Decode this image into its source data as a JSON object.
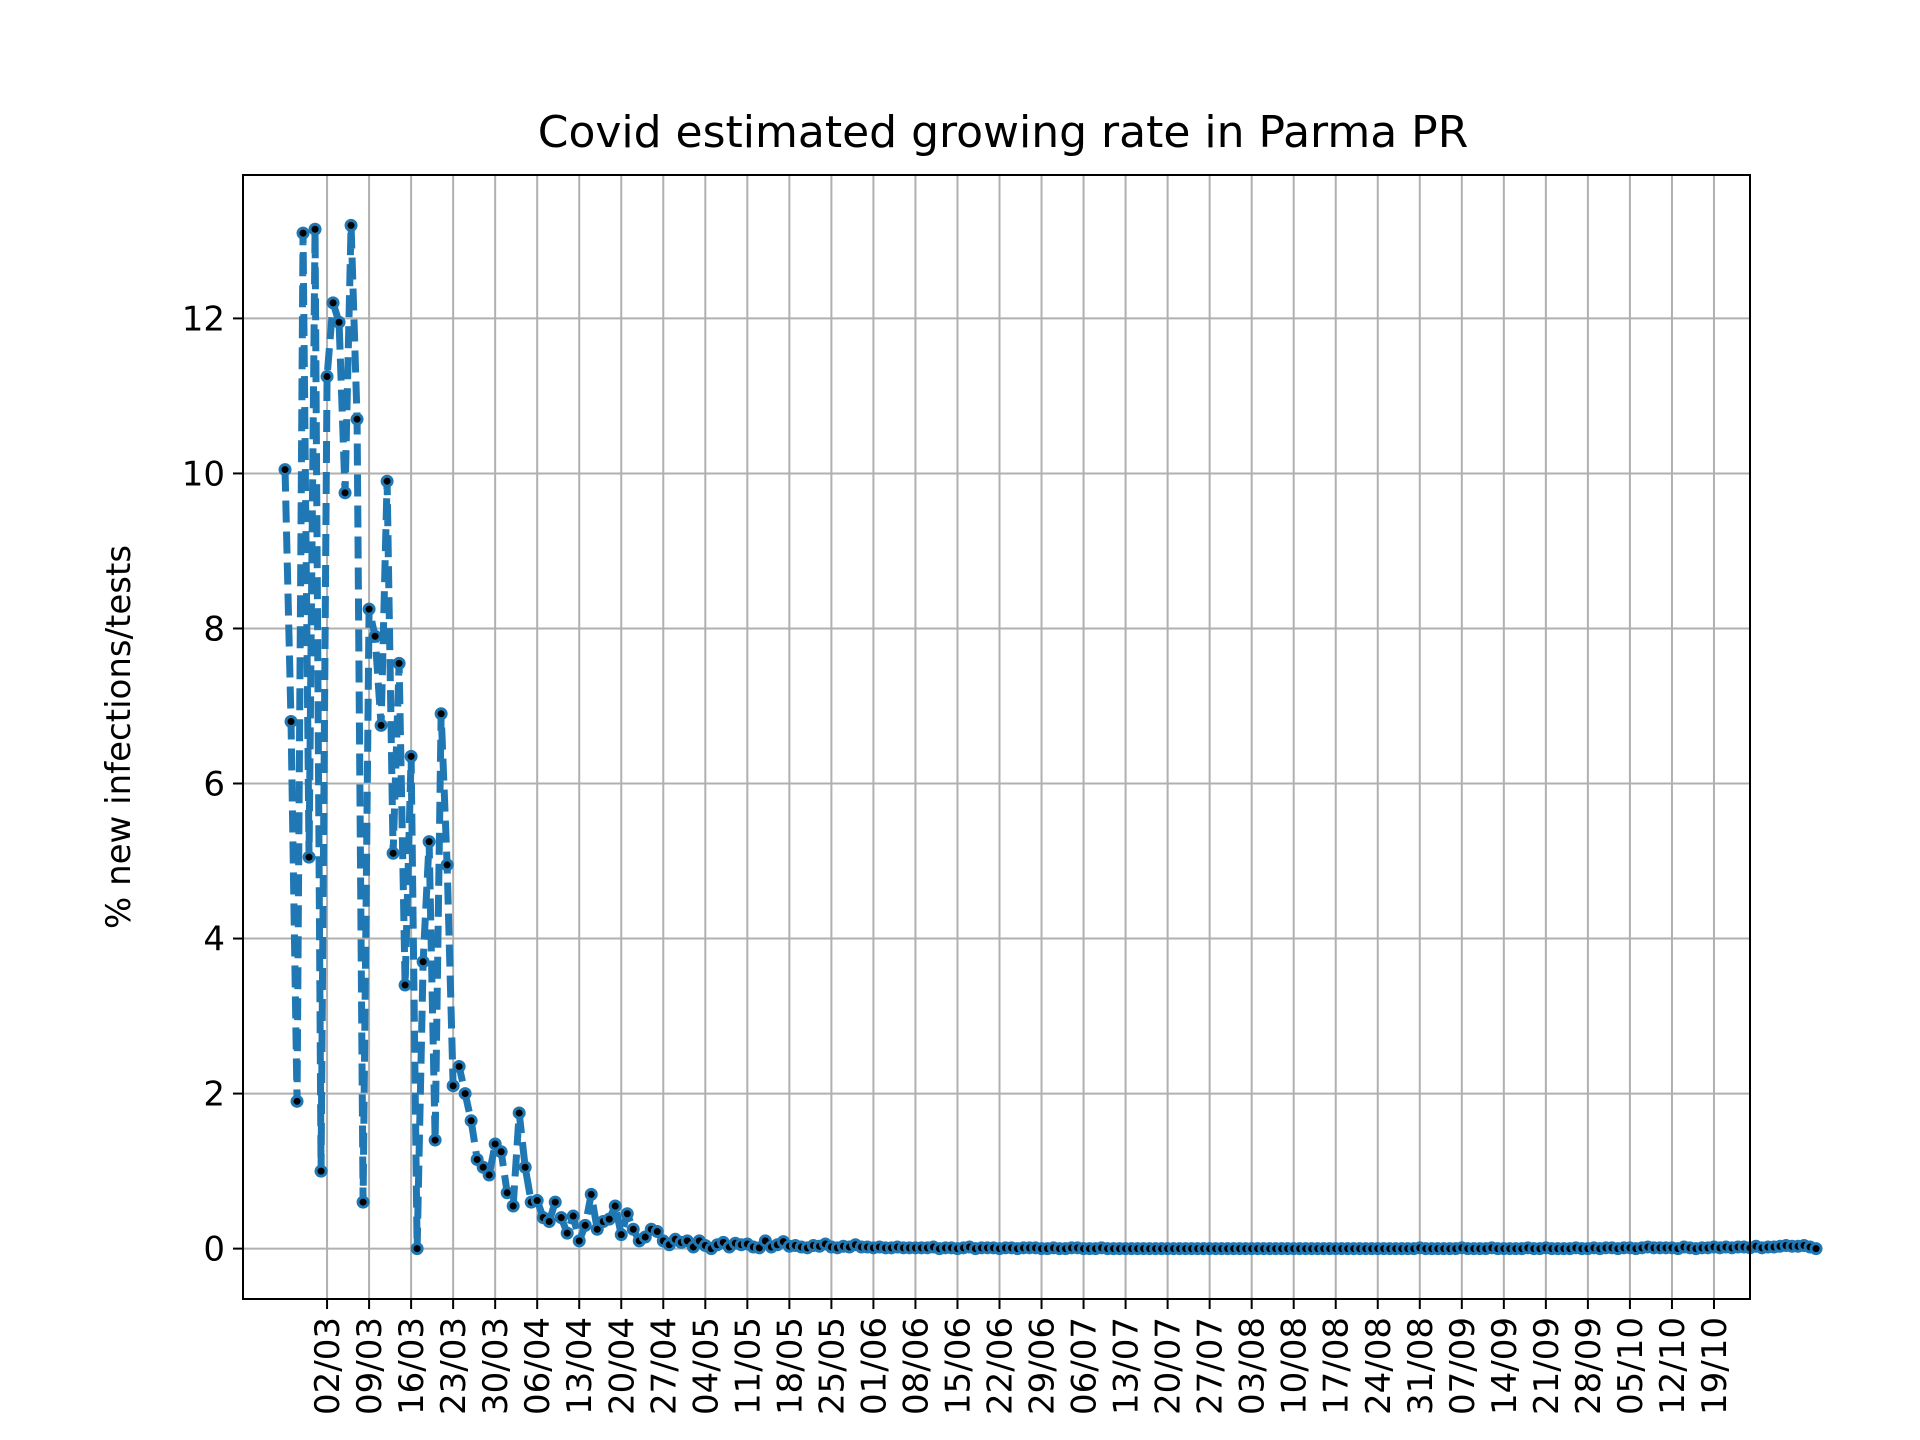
{
  "chart_data": {
    "type": "line",
    "title": "Covid estimated growing rate in Parma PR",
    "xlabel": "",
    "ylabel": "% new infections/tests",
    "x_start_date": "2020-02-24",
    "ylim": [
      -0.65,
      13.85
    ],
    "xlim_days": [
      -7,
      244
    ],
    "yticks": [
      0,
      2,
      4,
      6,
      8,
      10,
      12
    ],
    "xticks": [
      {
        "label": "02/03",
        "day": 7
      },
      {
        "label": "09/03",
        "day": 14
      },
      {
        "label": "16/03",
        "day": 21
      },
      {
        "label": "23/03",
        "day": 28
      },
      {
        "label": "30/03",
        "day": 35
      },
      {
        "label": "06/04",
        "day": 42
      },
      {
        "label": "13/04",
        "day": 49
      },
      {
        "label": "20/04",
        "day": 56
      },
      {
        "label": "27/04",
        "day": 63
      },
      {
        "label": "04/05",
        "day": 70
      },
      {
        "label": "11/05",
        "day": 77
      },
      {
        "label": "18/05",
        "day": 84
      },
      {
        "label": "25/05",
        "day": 91
      },
      {
        "label": "01/06",
        "day": 98
      },
      {
        "label": "08/06",
        "day": 105
      },
      {
        "label": "15/06",
        "day": 112
      },
      {
        "label": "22/06",
        "day": 119
      },
      {
        "label": "29/06",
        "day": 126
      },
      {
        "label": "06/07",
        "day": 133
      },
      {
        "label": "13/07",
        "day": 140
      },
      {
        "label": "20/07",
        "day": 147
      },
      {
        "label": "27/07",
        "day": 154
      },
      {
        "label": "03/08",
        "day": 161
      },
      {
        "label": "10/08",
        "day": 168
      },
      {
        "label": "17/08",
        "day": 175
      },
      {
        "label": "24/08",
        "day": 182
      },
      {
        "label": "31/08",
        "day": 189
      },
      {
        "label": "07/09",
        "day": 196
      },
      {
        "label": "14/09",
        "day": 203
      },
      {
        "label": "21/09",
        "day": 210
      },
      {
        "label": "28/09",
        "day": 217
      },
      {
        "label": "05/10",
        "day": 224
      },
      {
        "label": "12/10",
        "day": 231
      },
      {
        "label": "19/10",
        "day": 238
      }
    ],
    "grid": true,
    "series": [
      {
        "name": "",
        "color": "#1f77b4",
        "marker_color": "#000000",
        "line_style": "dashed",
        "values": [
          10.05,
          6.8,
          1.9,
          13.1,
          5.05,
          13.15,
          1.0,
          11.25,
          12.2,
          11.95,
          9.75,
          13.2,
          10.7,
          0.6,
          8.25,
          7.9,
          6.75,
          9.9,
          5.1,
          7.55,
          3.4,
          6.35,
          0.0,
          3.7,
          5.25,
          1.4,
          6.9,
          4.95,
          2.1,
          2.35,
          2.0,
          1.65,
          1.15,
          1.05,
          0.95,
          1.35,
          1.25,
          0.72,
          0.55,
          1.75,
          1.05,
          0.6,
          0.62,
          0.4,
          0.35,
          0.6,
          0.4,
          0.2,
          0.42,
          0.1,
          0.3,
          0.7,
          0.25,
          0.35,
          0.38,
          0.55,
          0.18,
          0.45,
          0.25,
          0.1,
          0.15,
          0.25,
          0.22,
          0.1,
          0.05,
          0.12,
          0.08,
          0.1,
          0.02,
          0.1,
          0.04,
          0.0,
          0.05,
          0.08,
          0.02,
          0.07,
          0.05,
          0.06,
          0.02,
          0.01,
          0.1,
          0.02,
          0.05,
          0.09,
          0.03,
          0.04,
          0.02,
          0.01,
          0.04,
          0.03,
          0.06,
          0.02,
          0.01,
          0.03,
          0.02,
          0.05,
          0.02,
          0.02,
          0.01,
          0.02,
          0.01,
          0.01,
          0.02,
          0.01,
          0.01,
          0.01,
          0.01,
          0.01,
          0.02,
          0.0,
          0.01,
          0.01,
          0.0,
          0.01,
          0.02,
          0.0,
          0.01,
          0.01,
          0.01,
          0.0,
          0.01,
          0.01,
          0.0,
          0.01,
          0.01,
          0.01,
          0.0,
          0.0,
          0.01,
          0.0,
          0.0,
          0.01,
          0.01,
          0.0,
          0.0,
          0.0,
          0.01,
          0.0,
          0.0,
          0.0,
          0.0,
          0.0,
          0.0,
          0.0,
          0.0,
          0.0,
          0.0,
          0.0,
          0.0,
          0.0,
          0.0,
          0.0,
          0.0,
          0.0,
          0.0,
          0.0,
          0.0,
          0.0,
          0.0,
          0.0,
          0.0,
          0.0,
          0.0,
          0.0,
          0.0,
          0.0,
          0.0,
          0.0,
          0.0,
          0.0,
          0.0,
          0.0,
          0.0,
          0.0,
          0.0,
          0.0,
          0.0,
          0.0,
          0.0,
          0.0,
          0.0,
          0.0,
          0.0,
          0.0,
          0.0,
          0.0,
          0.0,
          0.0,
          0.0,
          0.01,
          0.0,
          0.0,
          0.0,
          0.0,
          0.0,
          0.0,
          0.01,
          0.0,
          0.0,
          0.0,
          0.0,
          0.01,
          0.0,
          0.0,
          0.0,
          0.0,
          0.0,
          0.01,
          0.0,
          0.0,
          0.01,
          0.0,
          0.0,
          0.0,
          0.0,
          0.01,
          0.0,
          0.0,
          0.01,
          0.0,
          0.01,
          0.01,
          0.0,
          0.01,
          0.01,
          0.0,
          0.01,
          0.02,
          0.01,
          0.01,
          0.01,
          0.01,
          0.0,
          0.02,
          0.01,
          0.0,
          0.01,
          0.01,
          0.02,
          0.01,
          0.02,
          0.01,
          0.02,
          0.02,
          0.01,
          0.03,
          0.01,
          0.02,
          0.02,
          0.03,
          0.04,
          0.03,
          0.03,
          0.04,
          0.02,
          0.0
        ]
      }
    ]
  }
}
